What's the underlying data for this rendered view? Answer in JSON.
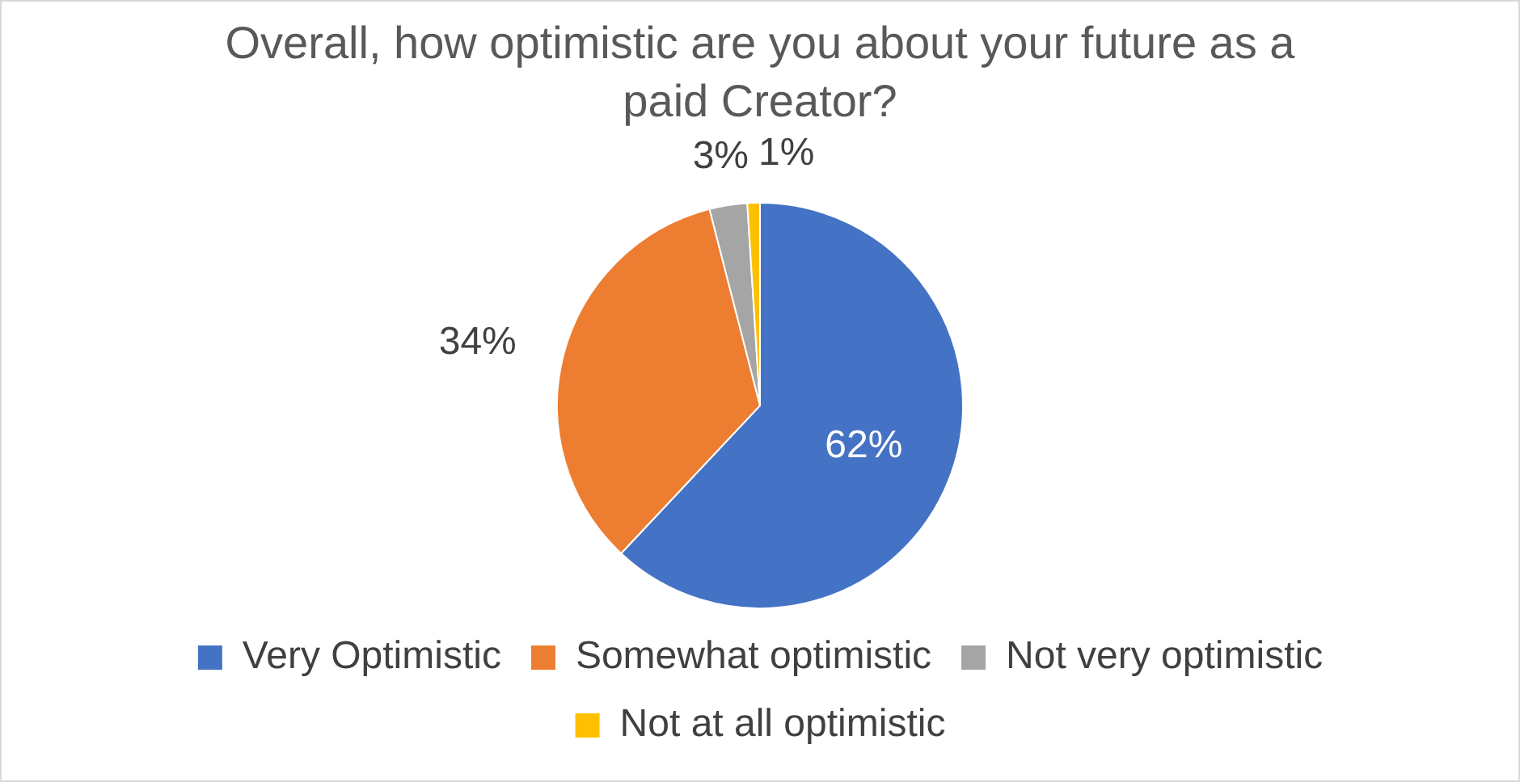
{
  "chart_data": {
    "type": "pie",
    "title": "Overall, how optimistic are you about your future as a paid Creator?",
    "categories": [
      "Very Optimistic",
      "Somewhat optimistic",
      "Not very optimistic",
      "Not at all optimistic"
    ],
    "values": [
      62,
      34,
      3,
      1
    ],
    "colors": [
      "#4472c4",
      "#ed7d31",
      "#a5a5a5",
      "#ffc000"
    ],
    "value_labels": [
      "62%",
      "34%",
      "3%",
      "1%"
    ],
    "legend": "bottom"
  }
}
